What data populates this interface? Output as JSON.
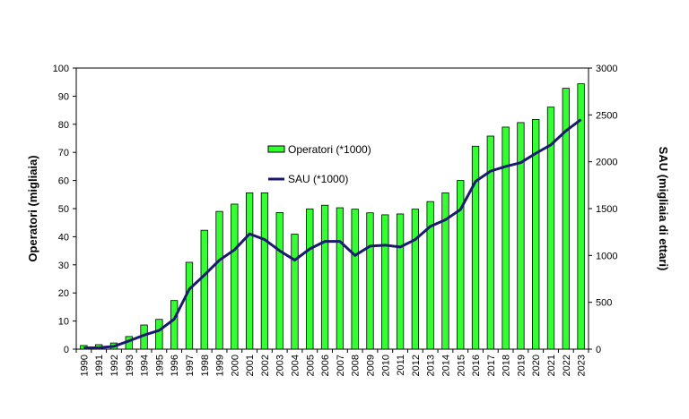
{
  "chart_data": {
    "type": "bar",
    "categories": [
      "1990",
      "1991",
      "1992",
      "1993",
      "1994",
      "1995",
      "1996",
      "1997",
      "1998",
      "1999",
      "2000",
      "2001",
      "2002",
      "2003",
      "2004",
      "2005",
      "2006",
      "2007",
      "2008",
      "2009",
      "2010",
      "2011",
      "2012",
      "2013",
      "2014",
      "2015",
      "2016",
      "2017",
      "2018",
      "2019",
      "2020",
      "2021",
      "2022",
      "2023"
    ],
    "series": [
      {
        "name": "Operatori (*1000)",
        "type": "bar",
        "axis": "left",
        "color": "#33ff33",
        "values": [
          1.3,
          1.6,
          2.2,
          4.5,
          8.6,
          10.6,
          17.3,
          30.9,
          42.3,
          49.0,
          51.6,
          55.6,
          55.6,
          48.6,
          40.9,
          49.9,
          51.2,
          50.3,
          49.8,
          48.5,
          47.8,
          48.1,
          49.8,
          52.5,
          55.6,
          60.0,
          72.2,
          75.8,
          79.0,
          80.6,
          81.7,
          86.1,
          92.8,
          94.4
        ]
      },
      {
        "name": "SAU (*1000)",
        "type": "line",
        "axis": "right",
        "color": "#1a1a6e",
        "values": [
          13,
          15,
          30,
          88,
          150,
          200,
          320,
          640,
          790,
          950,
          1060,
          1230,
          1170,
          1050,
          950,
          1070,
          1150,
          1150,
          1000,
          1100,
          1110,
          1090,
          1170,
          1310,
          1380,
          1490,
          1790,
          1900,
          1950,
          1990,
          2090,
          2180,
          2330,
          2450
        ]
      }
    ],
    "ylabel": "Operatori (migliaia)",
    "y2label": "SAU (migliaia di ettari)",
    "ylim": [
      0,
      100
    ],
    "y2lim": [
      0,
      3000
    ],
    "yticks": [
      0,
      10,
      20,
      30,
      40,
      50,
      60,
      70,
      80,
      90,
      100
    ],
    "y2ticks": [
      0,
      500,
      1000,
      1500,
      2000,
      2500,
      3000
    ],
    "grid": false,
    "legend_position": "center-left inside"
  },
  "colors": {
    "bar_fill": "#33ff33",
    "bar_stroke": "#000000",
    "line": "#1a1a6e"
  }
}
